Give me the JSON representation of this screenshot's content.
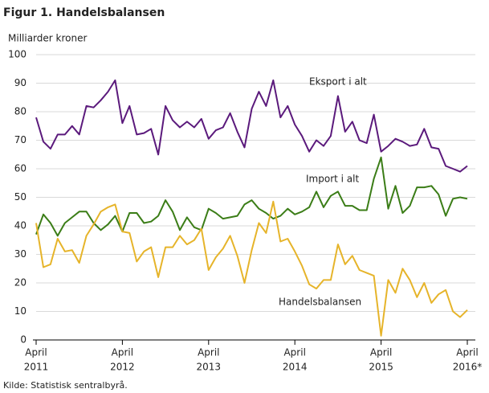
{
  "chart_data": {
    "type": "line",
    "title": "Figur 1. Handelsbalansen",
    "y_label": "Milliarder  kroner",
    "source": "Kilde: Statistisk sentralbyrå.",
    "categories": [
      {
        "month": "April",
        "year": "2011"
      },
      null,
      null,
      null,
      null,
      null,
      null,
      null,
      null,
      null,
      null,
      null,
      {
        "month": "April",
        "year": "2012"
      },
      null,
      null,
      null,
      null,
      null,
      null,
      null,
      null,
      null,
      null,
      null,
      {
        "month": "April",
        "year": "2013"
      },
      null,
      null,
      null,
      null,
      null,
      null,
      null,
      null,
      null,
      null,
      null,
      {
        "month": "April",
        "year": "2014"
      },
      null,
      null,
      null,
      null,
      null,
      null,
      null,
      null,
      null,
      null,
      null,
      {
        "month": "April",
        "year": "2015"
      },
      null,
      null,
      null,
      null,
      null,
      null,
      null,
      null,
      null,
      null,
      null,
      {
        "month": "April",
        "year": "2016*"
      }
    ],
    "series": [
      {
        "name": "Eksport i alt",
        "color": "#5b1a7c",
        "values": [
          78,
          69.5,
          67,
          72,
          72,
          75,
          72,
          82,
          81.5,
          84,
          87,
          91,
          76,
          82,
          72,
          72.5,
          74,
          65,
          82,
          77,
          74.5,
          76.5,
          74.5,
          77.5,
          70.5,
          73.5,
          74.5,
          79.5,
          73,
          67.5,
          81,
          87,
          82,
          91,
          78,
          82,
          75.5,
          71.5,
          66,
          70,
          68,
          71.5,
          85.5,
          73,
          76.5,
          70,
          69,
          79,
          66,
          68,
          70.5,
          69.5,
          68,
          68.5,
          74,
          67.5,
          67,
          61,
          60,
          59,
          61
        ]
      },
      {
        "name": "Import i alt",
        "color": "#3b7d17",
        "values": [
          37,
          44,
          41,
          36.5,
          41,
          43,
          45,
          45,
          41,
          38.5,
          40.5,
          43.5,
          38,
          44.5,
          44.5,
          41,
          41.5,
          43.5,
          49,
          45,
          38.5,
          43,
          39.5,
          38.5,
          46,
          44.5,
          42.5,
          43,
          43.5,
          47.5,
          49,
          46,
          44.5,
          42.5,
          43.5,
          46,
          44,
          45,
          46.5,
          52,
          46.5,
          50.5,
          52,
          47,
          47,
          45.5,
          45.5,
          56.5,
          64,
          46,
          54,
          44.5,
          47,
          53.5,
          53.5,
          54,
          51,
          43.5,
          49.5,
          50,
          49.5
        ]
      },
      {
        "name": "Handelsbalansen",
        "color": "#e6b42a",
        "values": [
          41,
          25.5,
          26.5,
          35.5,
          31,
          31.5,
          27,
          36.5,
          40.5,
          45,
          46.5,
          47.5,
          38,
          37.5,
          27.5,
          31,
          32.5,
          22,
          32.5,
          32.5,
          36.5,
          33.5,
          35,
          39,
          24.5,
          29,
          32,
          36.5,
          29.5,
          20,
          31.5,
          41,
          37.5,
          48.5,
          34.5,
          35.5,
          31,
          26,
          19.5,
          18,
          21,
          21,
          33.5,
          26.5,
          29.5,
          24.5,
          23.5,
          22.5,
          1.5,
          21,
          16.5,
          25,
          21,
          15,
          20,
          13,
          16,
          17.5,
          10,
          8,
          10.5
        ]
      }
    ],
    "ylim": [
      0,
      100
    ],
    "yticks": [
      0,
      10,
      20,
      30,
      40,
      50,
      60,
      70,
      80,
      90,
      100
    ],
    "grid": true
  }
}
